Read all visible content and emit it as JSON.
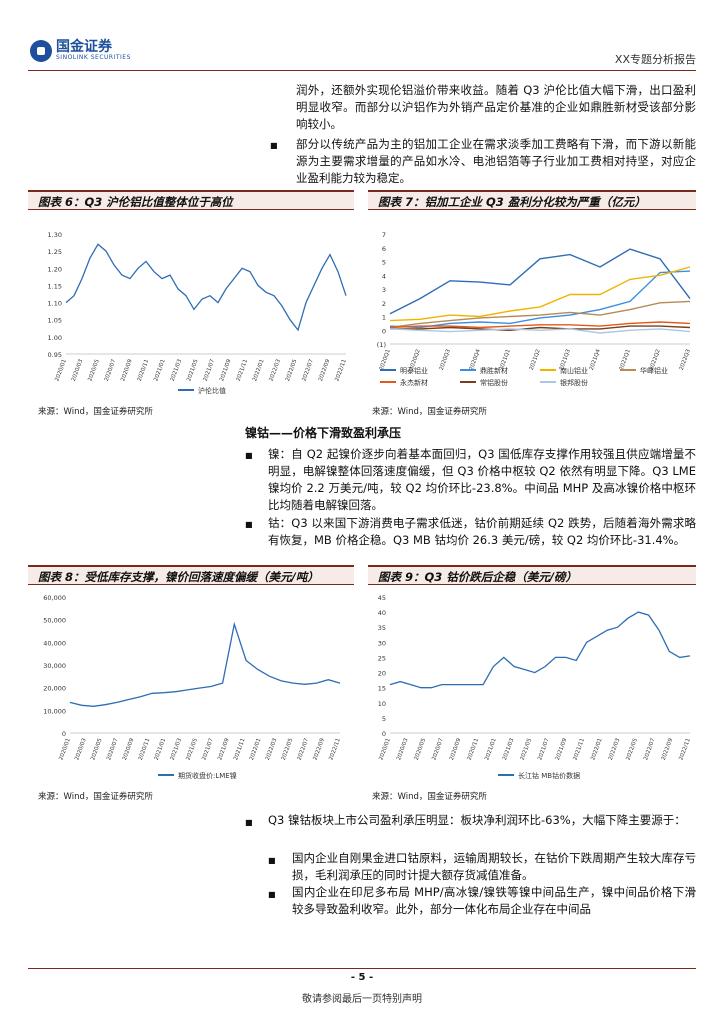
{
  "header": {
    "logo_cn": "国金证券",
    "logo_en": "SINOLINK SECURITIES",
    "report_title": "XX专题分析报告"
  },
  "intro": {
    "para1": "润外，还额外实现伦铝溢价带来收益。随着 Q3 沪伦比值大幅下滑，出口盈利明显收窄。而部分以沪铝作为外销产品定价基准的企业如鼎胜新材受该部分影响较小。",
    "bullet1": "部分以传统产品为主的铝加工企业在需求淡季加工费略有下滑，而下游以新能源为主要需求增量的产品如水冷、电池铝箔等子行业加工费相对持坚，对应企业盈利能力较为稳定。"
  },
  "figures": {
    "fig6_title": "图表 6：Q3 沪伦铝比值整体位于高位",
    "fig7_title": "图表 7：铝加工企业 Q3 盈利分化较为严重（亿元）",
    "fig8_title": "图表 8：受低库存支撑，镍价回落速度偏缓（美元/吨）",
    "fig9_title": "图表 9：Q3 钴价跌后企稳（美元/磅）",
    "source": "来源：Wind，国金证券研究所"
  },
  "section": {
    "title": "镍钴——价格下滑致盈利承压",
    "nickel": "镍：自 Q2 起镍价逐步向着基本面回归，Q3 国低库存支撑作用较强且供应端增量不明显，电解镍整体回落速度偏缓，但 Q3 价格中枢较 Q2 依然有明显下降。Q3 LME 镍均价 2.2 万美元/吨，较 Q2 均价环比-23.8%。中间品 MHP 及高冰镍价格中枢环比均随着电解镍回落。",
    "cobalt": "钴：Q3 以来国下游消费电子需求低迷，钴价前期延续 Q2 跌势，后随着海外需求略有恢复，MB 价格企稳。Q3 MB 钴均价 26.3 美元/磅，较 Q2 均价环比-31.4%。"
  },
  "bottom": {
    "bullet_main": "Q3 镍钴板块上市公司盈利承压明显：板块净利润环比-63%，大幅下降主要源于：",
    "sub1": "国内企业自刚果金进口钴原料，运输周期较长，在钴价下跌周期产生较大库存亏损，毛利润承压的同时计提大额存货减值准备。",
    "sub2": "国内企业在印尼多布局 MHP/高冰镍/镍铁等镍中间品生产，镍中间品价格下滑较多导致盈利收窄。此外，部分一体化布局企业存在中间品"
  },
  "footer": {
    "page_num": "- 5 -",
    "disclaimer": "敬请参阅最后一页特别声明"
  },
  "chart_data": [
    {
      "type": "line",
      "title": "图表 6：Q3 沪伦铝比值整体位于高位",
      "ylim": [
        0.95,
        1.3
      ],
      "yticks": [
        "1.30",
        "1.25",
        "1.20",
        "1.15",
        "1.10",
        "1.05",
        "1.00",
        "0.95"
      ],
      "xticks": [
        "2020/01",
        "2020/03",
        "2020/05",
        "2020/07",
        "2020/09",
        "2020/11",
        "2021/01",
        "2021/03",
        "2021/05",
        "2021/07",
        "2021/09",
        "2021/11",
        "2022/01",
        "2022/03",
        "2022/05",
        "2022/07",
        "2022/09",
        "2022/11"
      ],
      "series": [
        {
          "name": "沪伦比值",
          "color": "#2e6db4",
          "values": [
            1.1,
            1.12,
            1.17,
            1.23,
            1.27,
            1.25,
            1.21,
            1.18,
            1.17,
            1.2,
            1.22,
            1.19,
            1.17,
            1.18,
            1.14,
            1.12,
            1.08,
            1.11,
            1.12,
            1.1,
            1.14,
            1.17,
            1.2,
            1.19,
            1.15,
            1.13,
            1.12,
            1.09,
            1.05,
            1.02,
            1.1,
            1.15,
            1.2,
            1.24,
            1.19,
            1.12
          ]
        }
      ]
    },
    {
      "type": "line",
      "title": "图表 7：铝加工企业 Q3 盈利分化较为严重（亿元）",
      "ylim": [
        -1,
        7
      ],
      "yticks": [
        "7",
        "6",
        "5",
        "4",
        "3",
        "2",
        "1",
        "0",
        "(1)"
      ],
      "xticks": [
        "2020Q1",
        "2020Q2",
        "2020Q3",
        "2020Q4",
        "2021Q1",
        "2021Q2",
        "2021Q3",
        "2021Q4",
        "2022Q1",
        "2022Q2",
        "2022Q3"
      ],
      "series": [
        {
          "name": "明泰铝业",
          "color": "#2e6db4",
          "values": [
            1.2,
            2.3,
            3.6,
            3.5,
            3.3,
            5.2,
            5.5,
            4.6,
            5.9,
            5.2,
            2.3
          ]
        },
        {
          "name": "鼎胜新材",
          "color": "#3b8fe0",
          "values": [
            0.3,
            0.2,
            0.5,
            0.6,
            0.5,
            0.9,
            1.1,
            1.5,
            2.1,
            4.2,
            4.3
          ]
        },
        {
          "name": "南山铝业",
          "color": "#f0b400",
          "values": [
            0.7,
            0.8,
            1.1,
            1.0,
            1.4,
            1.7,
            2.6,
            2.6,
            3.7,
            4.0,
            4.6
          ]
        },
        {
          "name": "华峰铝业",
          "color": "#b68a55",
          "values": [
            0.2,
            0.5,
            0.7,
            0.9,
            1.0,
            1.1,
            1.3,
            1.1,
            1.5,
            2.0,
            2.1
          ]
        },
        {
          "name": "永杰新材",
          "color": "#e05a1b",
          "values": [
            0.2,
            0.3,
            0.3,
            0.2,
            0.3,
            0.4,
            0.4,
            0.3,
            0.5,
            0.6,
            0.5
          ]
        },
        {
          "name": "常铝股份",
          "color": "#7a3f1a",
          "values": [
            0.1,
            0.1,
            0.2,
            0.1,
            0.0,
            0.2,
            0.1,
            0.1,
            0.3,
            0.3,
            0.2
          ]
        },
        {
          "name": "银邦股份",
          "color": "#a8c8e8",
          "values": [
            0.1,
            0.0,
            -0.1,
            0.0,
            0.1,
            0.0,
            0.1,
            -0.2,
            0.0,
            0.1,
            -0.1
          ]
        }
      ]
    },
    {
      "type": "line",
      "title": "图表 8：受低库存支撑，镍价回落速度偏缓（美元/吨）",
      "ylim": [
        0,
        60000
      ],
      "yticks": [
        "60,000",
        "50,000",
        "40,000",
        "30,000",
        "20,000",
        "10,000",
        "0"
      ],
      "xticks": [
        "2020/01",
        "2020/03",
        "2020/05",
        "2020/07",
        "2020/09",
        "2020/11",
        "2021/01",
        "2021/03",
        "2021/05",
        "2021/07",
        "2021/09",
        "2021/11",
        "2022/01",
        "2022/03",
        "2022/05",
        "2022/07",
        "2022/09",
        "2022/11"
      ],
      "series": [
        {
          "name": "期货收盘价:LME镍",
          "values": [
            13500,
            12200,
            11800,
            12500,
            13500,
            14800,
            16000,
            17500,
            17800,
            18200,
            19000,
            19800,
            20500,
            22000,
            48000,
            32000,
            28000,
            25000,
            23000,
            22000,
            21500,
            22000,
            23500,
            22000
          ]
        }
      ]
    },
    {
      "type": "line",
      "title": "图表 9：Q3 钴价跌后企稳（美元/磅）",
      "ylim": [
        0,
        45
      ],
      "yticks": [
        "45",
        "40",
        "35",
        "30",
        "25",
        "20",
        "15",
        "10",
        "5",
        "0"
      ],
      "xticks": [
        "2020/01",
        "2020/03",
        "2020/05",
        "2020/07",
        "2020/09",
        "2020/11",
        "2021/01",
        "2021/03",
        "2021/05",
        "2021/07",
        "2021/09",
        "2021/11",
        "2022/01",
        "2022/03",
        "2022/05",
        "2022/07",
        "2022/09",
        "2022/11"
      ],
      "series": [
        {
          "name": "长江钴 MB钴价数据",
          "values": [
            16,
            17,
            16,
            15,
            15,
            16,
            16,
            16,
            16,
            16,
            22,
            25,
            22,
            21,
            20,
            22,
            25,
            25,
            24,
            30,
            32,
            34,
            35,
            38,
            40,
            39,
            34,
            27,
            25,
            25.5
          ]
        }
      ]
    }
  ]
}
